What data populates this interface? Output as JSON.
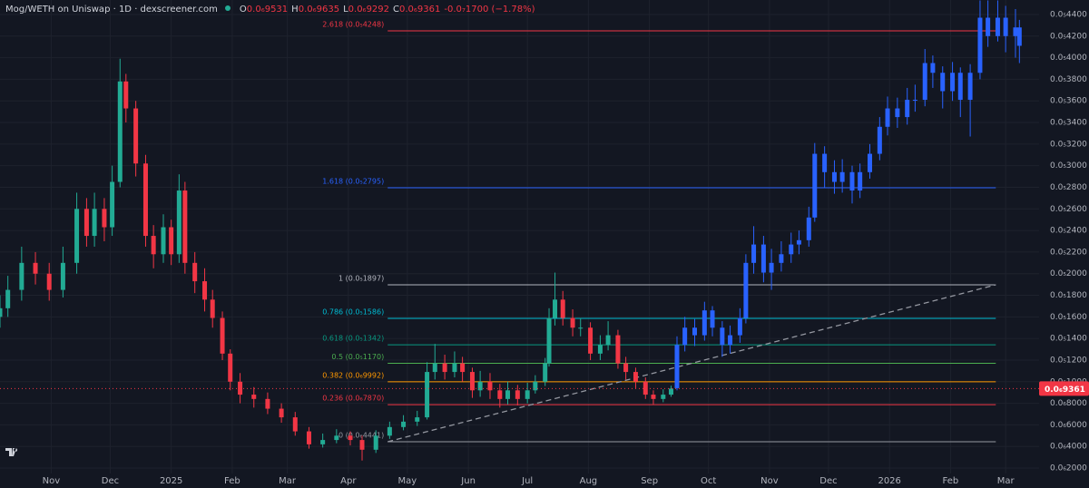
{
  "header": {
    "title": "Mog/WETH on Uniswap · 1D · dexscreener.com",
    "ohlc": [
      {
        "key": "O",
        "value": "0.0₆9531"
      },
      {
        "key": "H",
        "value": "0.0₆9635"
      },
      {
        "key": "L",
        "value": "0.0₆9292"
      },
      {
        "key": "C",
        "value": "0.0₆9361"
      }
    ],
    "change": "-0.0₇1700 (−1.78%)"
  },
  "chart_data": {
    "type": "candlestick",
    "grid": true,
    "xlim": [
      -26,
      502
    ],
    "xticks": [
      {
        "value": 0,
        "label": "Nov"
      },
      {
        "value": 30,
        "label": "Dec"
      },
      {
        "value": 61,
        "label": "2025"
      },
      {
        "value": 92,
        "label": "Feb"
      },
      {
        "value": 120,
        "label": "Mar"
      },
      {
        "value": 151,
        "label": "Apr"
      },
      {
        "value": 181,
        "label": "May"
      },
      {
        "value": 212,
        "label": "Jun"
      },
      {
        "value": 242,
        "label": "Jul"
      },
      {
        "value": 273,
        "label": "Aug"
      },
      {
        "value": 304,
        "label": "Sep"
      },
      {
        "value": 334,
        "label": "Oct"
      },
      {
        "value": 365,
        "label": "Nov"
      },
      {
        "value": 395,
        "label": "Dec"
      },
      {
        "value": 426,
        "label": "2026"
      },
      {
        "value": 457,
        "label": "Feb"
      },
      {
        "value": 485,
        "label": "Mar"
      }
    ],
    "ylim": [
      1.5e-07,
      4.534e-06
    ],
    "yticks": [
      {
        "value": 2e-07,
        "label": "0.0₆2000"
      },
      {
        "value": 4e-07,
        "label": "0.0₆4000"
      },
      {
        "value": 6e-07,
        "label": "0.0₆6000"
      },
      {
        "value": 8e-07,
        "label": "0.0₆8000"
      },
      {
        "value": 1e-06,
        "label": "0.0₅1000"
      },
      {
        "value": 1.2e-06,
        "label": "0.0₅1200"
      },
      {
        "value": 1.4e-06,
        "label": "0.0₅1400"
      },
      {
        "value": 1.6e-06,
        "label": "0.0₅1600"
      },
      {
        "value": 1.8e-06,
        "label": "0.0₅1800"
      },
      {
        "value": 2e-06,
        "label": "0.0₅2000"
      },
      {
        "value": 2.2e-06,
        "label": "0.0₅2200"
      },
      {
        "value": 2.4e-06,
        "label": "0.0₅2400"
      },
      {
        "value": 2.6e-06,
        "label": "0.0₅2600"
      },
      {
        "value": 2.8e-06,
        "label": "0.0₅2800"
      },
      {
        "value": 3e-06,
        "label": "0.0₅3000"
      },
      {
        "value": 3.2e-06,
        "label": "0.0₅3200"
      },
      {
        "value": 3.4e-06,
        "label": "0.0₅3400"
      },
      {
        "value": 3.6e-06,
        "label": "0.0₅3600"
      },
      {
        "value": 3.8e-06,
        "label": "0.0₅3800"
      },
      {
        "value": 4e-06,
        "label": "0.0₅4000"
      },
      {
        "value": 4.2e-06,
        "label": "0.0₅4200"
      },
      {
        "value": 4.4e-06,
        "label": "0.0₅4400"
      }
    ],
    "series": [
      {
        "up_color": "#22ab94",
        "down_color": "#f23645",
        "x": [
          -26,
          -22,
          -15,
          -8,
          -1,
          6,
          13,
          18,
          22,
          27,
          31,
          35,
          38,
          43,
          48,
          52,
          57,
          61,
          65,
          68,
          73,
          78,
          82,
          87,
          91,
          96,
          103,
          110,
          117,
          124,
          131,
          138,
          145,
          152,
          158,
          165,
          172,
          179,
          186,
          191,
          195,
          200,
          205,
          209,
          214,
          218,
          223,
          228,
          232,
          237,
          242,
          246,
          251,
          253,
          256,
          260,
          265,
          269,
          274,
          279,
          283,
          288,
          292,
          297,
          302,
          306,
          311,
          315
        ],
        "open": [
          1.6e-06,
          1.68e-06,
          1.85e-06,
          2.1e-06,
          2e-06,
          1.85e-06,
          2.1e-06,
          2.6e-06,
          2.35e-06,
          2.6e-06,
          2.43e-06,
          2.85e-06,
          3.78e-06,
          3.53e-06,
          3.02e-06,
          2.35e-06,
          2.18e-06,
          2.43e-06,
          2.18e-06,
          2.77e-06,
          2.1e-06,
          1.93e-06,
          1.76e-06,
          1.59e-06,
          1.26e-06,
          1e-06,
          8.8e-07,
          8.4e-07,
          7.5e-07,
          6.7e-07,
          5.4e-07,
          4.2e-07,
          4.6e-07,
          5e-07,
          4.6e-07,
          3.7e-07,
          5e-07,
          5.8e-07,
          6.3e-07,
          6.7e-07,
          1.09e-06,
          1.17e-06,
          1.09e-06,
          1.17e-06,
          1.09e-06,
          9.2e-07,
          1e-06,
          9.2e-07,
          8.4e-07,
          9.2e-07,
          8.4e-07,
          9.2e-07,
          1e-06,
          1.17e-06,
          1.59e-06,
          1.76e-06,
          1.59e-06,
          1.5e-06,
          1.5e-06,
          1.26e-06,
          1.34e-06,
          1.43e-06,
          1.17e-06,
          1.09e-06,
          1e-06,
          8.8e-07,
          8.4e-07,
          8.8e-07
        ],
        "high": [
          1.8e-06,
          1.98e-06,
          2.25e-06,
          2.2e-06,
          2.1e-06,
          2.25e-06,
          2.75e-06,
          2.7e-06,
          2.75e-06,
          2.7e-06,
          3e-06,
          3.99e-06,
          3.85e-06,
          3.6e-06,
          3.1e-06,
          2.45e-06,
          2.55e-06,
          2.5e-06,
          2.92e-06,
          2.85e-06,
          2.2e-06,
          2.05e-06,
          1.85e-06,
          1.65e-06,
          1.3e-06,
          1.08e-06,
          9.5e-07,
          9e-07,
          8e-07,
          7.2e-07,
          5.8e-07,
          5.2e-07,
          5.6e-07,
          5.4e-07,
          5e-07,
          5.5e-07,
          6.3e-07,
          6.9e-07,
          7.3e-07,
          1.18e-06,
          1.35e-06,
          1.25e-06,
          1.28e-06,
          1.23e-06,
          1.13e-06,
          1.1e-06,
          1.08e-06,
          9.8e-07,
          1e-06,
          9.7e-07,
          9.9e-07,
          1.06e-06,
          1.22e-06,
          1.68e-06,
          2.01e-06,
          1.84e-06,
          1.67e-06,
          1.59e-06,
          1.55e-06,
          1.43e-06,
          1.56e-06,
          1.48e-06,
          1.23e-06,
          1.13e-06,
          1.04e-06,
          9.2e-07,
          9.3e-07,
          9.635e-07
        ],
        "low": [
          1.5e-06,
          1.6e-06,
          1.75e-06,
          1.9e-06,
          1.75e-06,
          1.78e-06,
          2e-06,
          2.25e-06,
          2.25e-06,
          2.3e-06,
          2.35e-06,
          2.8e-06,
          3.4e-06,
          2.9e-06,
          2.25e-06,
          2.05e-06,
          2.1e-06,
          2.08e-06,
          2.1e-06,
          2e-06,
          1.82e-06,
          1.65e-06,
          1.5e-06,
          1.2e-06,
          9.2e-07,
          8e-07,
          7.6e-07,
          7e-07,
          6.2e-07,
          5e-07,
          3.8e-07,
          3.9e-07,
          4.3e-07,
          4.1e-07,
          2.7e-07,
          3.4e-07,
          4.7e-07,
          5.5e-07,
          5.9e-07,
          6.5e-07,
          1.02e-06,
          1.02e-06,
          1.04e-06,
          1e-06,
          8.5e-07,
          8.6e-07,
          8.4e-07,
          7.6e-07,
          7.9e-07,
          7.8e-07,
          8e-07,
          8.9e-07,
          9.6e-07,
          1.14e-06,
          1.52e-06,
          1.52e-06,
          1.42e-06,
          1.42e-06,
          1.2e-06,
          1.2e-06,
          1.29e-06,
          1.12e-06,
          1.02e-06,
          9.4e-07,
          8.4e-07,
          7.9e-07,
          8.1e-07,
          8.6e-07
        ],
        "close": [
          1.68e-06,
          1.85e-06,
          2.1e-06,
          2e-06,
          1.85e-06,
          2.1e-06,
          2.6e-06,
          2.35e-06,
          2.6e-06,
          2.43e-06,
          2.85e-06,
          3.78e-06,
          3.53e-06,
          3.02e-06,
          2.35e-06,
          2.18e-06,
          2.43e-06,
          2.18e-06,
          2.77e-06,
          2.1e-06,
          1.93e-06,
          1.76e-06,
          1.59e-06,
          1.26e-06,
          1e-06,
          8.8e-07,
          8.4e-07,
          7.5e-07,
          6.7e-07,
          5.4e-07,
          4.2e-07,
          4.6e-07,
          5e-07,
          4.6e-07,
          3.7e-07,
          5e-07,
          5.8e-07,
          6.3e-07,
          6.7e-07,
          1.09e-06,
          1.17e-06,
          1.09e-06,
          1.17e-06,
          1.09e-06,
          9.2e-07,
          1e-06,
          9.2e-07,
          8.4e-07,
          9.2e-07,
          8.4e-07,
          9.2e-07,
          1e-06,
          1.17e-06,
          1.59e-06,
          1.76e-06,
          1.59e-06,
          1.5e-06,
          1.5e-06,
          1.26e-06,
          1.34e-06,
          1.43e-06,
          1.17e-06,
          1.09e-06,
          1e-06,
          8.8e-07,
          8.4e-07,
          8.8e-07,
          9.361e-07
        ]
      },
      {
        "color": "#2962ff",
        "x": [
          318,
          322,
          327,
          332,
          336,
          341,
          345,
          350,
          353,
          357,
          362,
          366,
          371,
          376,
          380,
          385,
          388,
          393,
          398,
          402,
          407,
          411,
          416,
          421,
          425,
          430,
          435,
          439,
          444,
          448,
          453,
          458,
          462,
          467,
          472,
          476,
          481,
          485,
          490,
          492
        ],
        "open": [
          9.4e-07,
          1.34e-06,
          1.5e-06,
          1.43e-06,
          1.66e-06,
          1.5e-06,
          1.34e-06,
          1.43e-06,
          1.59e-06,
          2.1e-06,
          2.27e-06,
          2.01e-06,
          2.1e-06,
          2.18e-06,
          2.27e-06,
          2.31e-06,
          2.52e-06,
          3.11e-06,
          2.94e-06,
          2.85e-06,
          2.94e-06,
          2.77e-06,
          2.94e-06,
          3.11e-06,
          3.36e-06,
          3.53e-06,
          3.45e-06,
          3.61e-06,
          3.61e-06,
          3.95e-06,
          3.86e-06,
          3.69e-06,
          3.86e-06,
          3.61e-06,
          3.86e-06,
          4.37e-06,
          4.2e-06,
          4.37e-06,
          4.2e-06,
          4.28e-06
        ],
        "high": [
          1.42e-06,
          1.6e-06,
          1.58e-06,
          1.74e-06,
          1.7e-06,
          1.56e-06,
          1.52e-06,
          1.68e-06,
          2.18e-06,
          2.44e-06,
          2.35e-06,
          2.23e-06,
          2.3e-06,
          2.38e-06,
          2.4e-06,
          2.62e-06,
          3.21e-06,
          3.18e-06,
          3.05e-06,
          3.06e-06,
          3e-06,
          3.02e-06,
          3.2e-06,
          3.45e-06,
          3.64e-06,
          3.63e-06,
          3.72e-06,
          3.75e-06,
          4.08e-06,
          4.02e-06,
          3.92e-06,
          3.96e-06,
          3.91e-06,
          3.94e-06,
          4.53e-06,
          4.53e-06,
          4.53e-06,
          4.48e-06,
          4.45e-06,
          4.35e-06
        ],
        "low": [
          9.2e-07,
          1.28e-06,
          1.33e-06,
          1.38e-06,
          1.42e-06,
          1.23e-06,
          1.26e-06,
          1.36e-06,
          1.54e-06,
          2e-06,
          1.92e-06,
          1.85e-06,
          2.02e-06,
          2.1e-06,
          2.18e-06,
          2.25e-06,
          2.48e-06,
          2.8e-06,
          2.74e-06,
          2.75e-06,
          2.65e-06,
          2.7e-06,
          2.88e-06,
          3.05e-06,
          3.28e-06,
          3.35e-06,
          3.38e-06,
          3.5e-06,
          3.55e-06,
          3.72e-06,
          3.53e-06,
          3.6e-06,
          3.45e-06,
          3.27e-06,
          3.8e-06,
          4.1e-06,
          4.15e-06,
          4.05e-06,
          4e-06,
          3.95e-06
        ],
        "close": [
          1.34e-06,
          1.5e-06,
          1.43e-06,
          1.66e-06,
          1.5e-06,
          1.34e-06,
          1.43e-06,
          1.59e-06,
          2.1e-06,
          2.27e-06,
          2.01e-06,
          2.1e-06,
          2.18e-06,
          2.27e-06,
          2.31e-06,
          2.52e-06,
          3.11e-06,
          2.94e-06,
          2.85e-06,
          2.94e-06,
          2.77e-06,
          2.94e-06,
          3.11e-06,
          3.36e-06,
          3.53e-06,
          3.45e-06,
          3.61e-06,
          3.61e-06,
          3.95e-06,
          3.86e-06,
          3.69e-06,
          3.86e-06,
          3.61e-06,
          3.86e-06,
          4.37e-06,
          4.2e-06,
          4.37e-06,
          4.2e-06,
          4.28e-06,
          4.11e-06
        ]
      }
    ],
    "trendline": {
      "color": "#9598a1",
      "x": [
        171,
        480
      ],
      "values": [
        4.441e-07,
        1.897e-06
      ]
    },
    "fib_levels": [
      {
        "label": "2.618 (0.0₅4248)",
        "value": 4.248e-06,
        "color": "#f23645"
      },
      {
        "label": "1.618 (0.0₅2795)",
        "value": 2.795e-06,
        "color": "#2962ff"
      },
      {
        "label": "1 (0.0₅1897)",
        "value": 1.897e-06,
        "color": "#b2b5be"
      },
      {
        "label": "0.786 (0.0₅1586)",
        "value": 1.586e-06,
        "color": "#00bcd4"
      },
      {
        "label": "0.618 (0.0₅1342)",
        "value": 1.342e-06,
        "color": "#089981"
      },
      {
        "label": "0.5 (0.0₅1170)",
        "value": 1.17e-06,
        "color": "#4caf50"
      },
      {
        "label": "0.382 (0.0₆9992)",
        "value": 9.992e-07,
        "color": "#ff9800"
      },
      {
        "label": "0.236 (0.0₆7870)",
        "value": 7.87e-07,
        "color": "#f23645"
      },
      {
        "label": "0 (0.0₆4441)",
        "value": 4.441e-07,
        "color": "#9598a1"
      }
    ],
    "last_price": {
      "value": 9.361e-07,
      "label": "0.0₆9361",
      "color": "#f23645"
    }
  }
}
